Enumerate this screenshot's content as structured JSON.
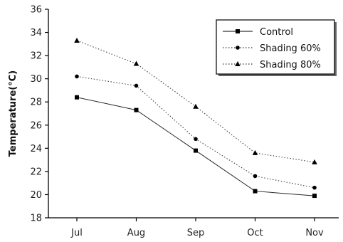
{
  "chart_data": {
    "type": "line",
    "title": "",
    "xlabel": "",
    "ylabel": "Temperature(°C)",
    "categories": [
      "Jul",
      "Aug",
      "Sep",
      "Oct",
      "Nov"
    ],
    "ylim": [
      18,
      36
    ],
    "yticks": [
      18,
      20,
      22,
      24,
      26,
      28,
      30,
      32,
      34,
      36
    ],
    "grid": false,
    "legend_position": "top-right",
    "series": [
      {
        "name": "Control",
        "marker": "square",
        "line_style": "solid",
        "color": "#000000",
        "values": [
          28.4,
          27.3,
          23.8,
          20.3,
          19.9
        ]
      },
      {
        "name": "Shading 60%",
        "marker": "circle",
        "line_style": "dotted",
        "color": "#000000",
        "values": [
          30.2,
          29.4,
          24.8,
          21.6,
          20.6
        ]
      },
      {
        "name": "Shading 80%",
        "marker": "triangle",
        "line_style": "dotted",
        "color": "#000000",
        "values": [
          33.3,
          31.3,
          27.6,
          23.6,
          22.8
        ]
      }
    ]
  }
}
